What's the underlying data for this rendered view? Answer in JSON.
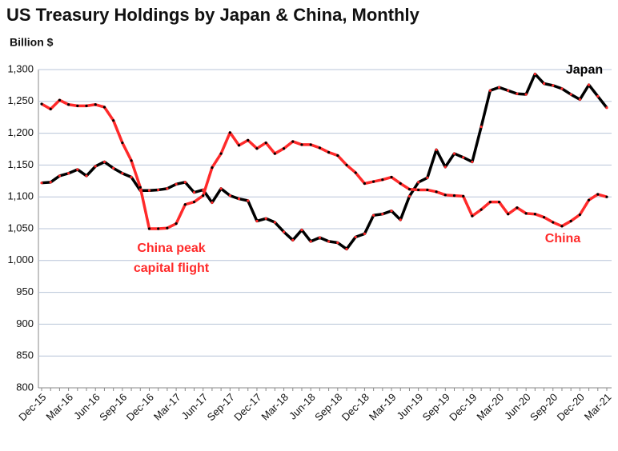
{
  "chart_data": {
    "type": "line",
    "title": "US Treasury Holdings  by Japan & China, Monthly",
    "subtitle": "Billion $",
    "annotation": [
      "China peak",
      "capital flight"
    ],
    "categories": [
      "Dec-15",
      null,
      null,
      "Mar-16",
      null,
      null,
      "Jun-16",
      null,
      null,
      "Sep-16",
      null,
      null,
      "Dec-16",
      null,
      null,
      "Mar-17",
      null,
      null,
      "Jun-17",
      null,
      null,
      "Sep-17",
      null,
      null,
      "Dec-17",
      null,
      null,
      "Mar-18",
      null,
      null,
      "Jun-18",
      null,
      null,
      "Sep-18",
      null,
      null,
      "Dec-18",
      null,
      null,
      "Mar-19",
      null,
      null,
      "Jun-19",
      null,
      null,
      "Sep-19",
      null,
      null,
      "Dec-19",
      null,
      null,
      "Mar-20",
      null,
      null,
      "Jun-20",
      null,
      null,
      "Sep-20",
      null,
      null,
      "Dec-20",
      null,
      null,
      "Mar-21"
    ],
    "series": [
      {
        "name": "Japan",
        "color": "#000000",
        "marker_color": "#ff2a2a",
        "values": [
          1122,
          1123,
          1133,
          1137,
          1143,
          1133,
          1148,
          1155,
          1145,
          1137,
          1131,
          1110,
          1110,
          1111,
          1113,
          1120,
          1123,
          1107,
          1111,
          1091,
          1113,
          1102,
          1097,
          1094,
          1062,
          1066,
          1060,
          1045,
          1032,
          1048,
          1030,
          1036,
          1030,
          1028,
          1018,
          1037,
          1042,
          1071,
          1073,
          1078,
          1064,
          1101,
          1123,
          1130,
          1174,
          1147,
          1168,
          1162,
          1155,
          1210,
          1267,
          1272,
          1267,
          1262,
          1261,
          1293,
          1278,
          1275,
          1270,
          1261,
          1253,
          1276,
          1258,
          1240
        ]
      },
      {
        "name": "China",
        "color": "#ff2a2a",
        "marker_color": "#000000",
        "values": [
          1246,
          1238,
          1252,
          1245,
          1243,
          1243,
          1245,
          1241,
          1220,
          1185,
          1157,
          1115,
          1050,
          1050,
          1051,
          1058,
          1088,
          1092,
          1102,
          1146,
          1168,
          1201,
          1181,
          1189,
          1176,
          1185,
          1168,
          1176,
          1187,
          1182,
          1182,
          1177,
          1170,
          1165,
          1150,
          1138,
          1121,
          1124,
          1127,
          1131,
          1121,
          1112,
          1111,
          1111,
          1108,
          1103,
          1102,
          1101,
          1070,
          1080,
          1092,
          1092,
          1073,
          1083,
          1074,
          1073,
          1068,
          1060,
          1054,
          1062,
          1072,
          1095,
          1104,
          1100
        ]
      }
    ],
    "ylim": [
      800,
      1300
    ],
    "yticks": [
      800,
      850,
      900,
      950,
      {
        "value": 1000,
        "label": "1,000"
      },
      {
        "value": 1050,
        "label": "1,050"
      },
      {
        "value": 1100,
        "label": "1,100"
      },
      {
        "value": 1150,
        "label": "1,150"
      },
      {
        "value": 1200,
        "label": "1,200"
      },
      {
        "value": 1250,
        "label": "1,250"
      },
      {
        "value": 1300,
        "label": "1,300"
      }
    ],
    "grid": true
  }
}
